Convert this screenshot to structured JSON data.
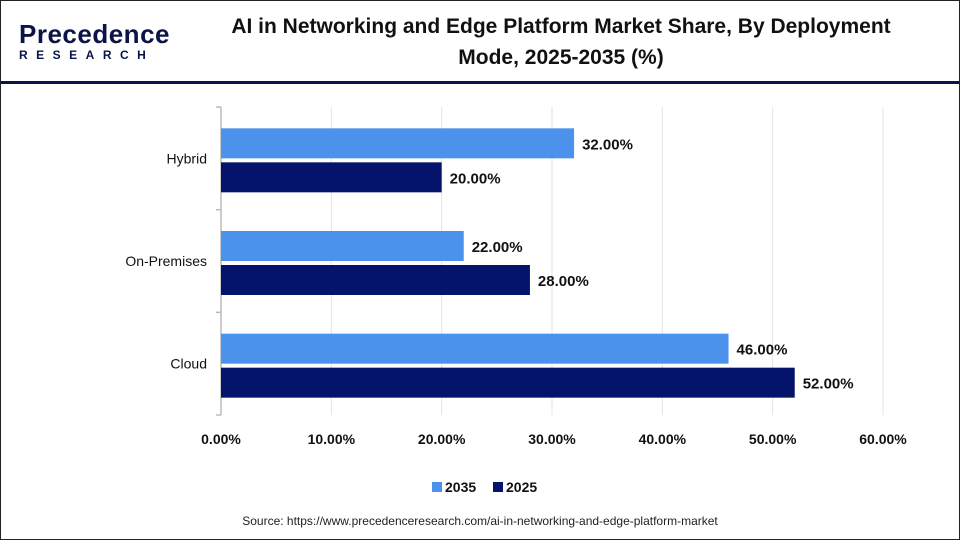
{
  "title": "AI in Networking and Edge Platform Market Share, By Deployment Mode, 2025-2035 (%)",
  "logo": {
    "top": "Precedence",
    "bottom": "RESEARCH"
  },
  "source": "Source: https://www.precedenceresearch.com/ai-in-networking-and-edge-platform-market",
  "colors": {
    "2035": "#4a92ec",
    "2025": "#03146a"
  },
  "chart_data": {
    "type": "bar",
    "orientation": "horizontal",
    "title": "AI in Networking and Edge Platform Market Share, By Deployment Mode, 2025-2035 (%)",
    "categories": [
      "Hybrid",
      "On-Premises",
      "Cloud"
    ],
    "series": [
      {
        "name": "2035",
        "values": [
          32,
          22,
          46
        ],
        "labels": [
          "32.00%",
          "22.00%",
          "46.00%"
        ]
      },
      {
        "name": "2025",
        "values": [
          20,
          28,
          52
        ],
        "labels": [
          "20.00%",
          "28.00%",
          "52.00%"
        ]
      }
    ],
    "xlim": [
      0,
      60
    ],
    "xticks": [
      "0.00%",
      "10.00%",
      "20.00%",
      "30.00%",
      "40.00%",
      "50.00%",
      "60.00%"
    ],
    "grid": true,
    "legend": "bottom"
  }
}
